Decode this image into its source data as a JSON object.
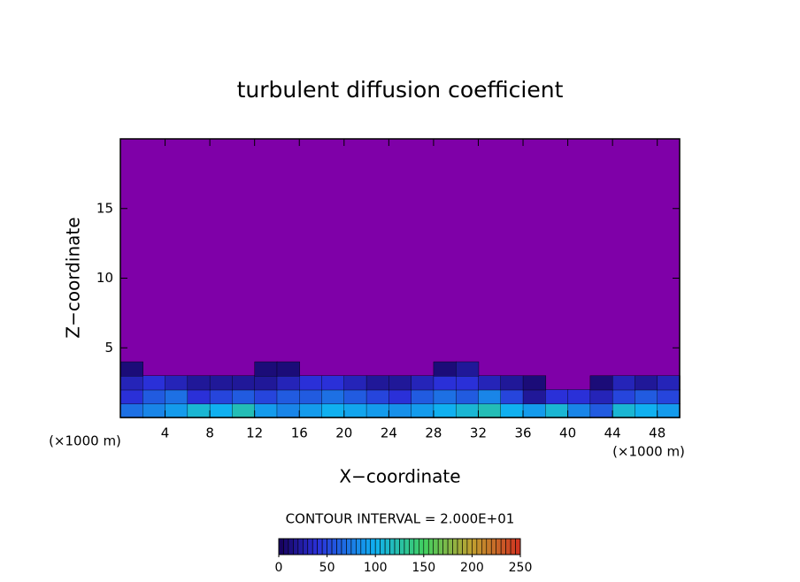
{
  "chart_data": {
    "type": "contour",
    "title": "turbulent diffusion coefficient",
    "x_label": "X−coordinate",
    "y_label": "Z−coordinate",
    "x_unit": "(×1000 m)",
    "contour_interval": "CONTOUR INTERVAL = 2.000E+01",
    "xlim": [
      0,
      50
    ],
    "ylim": [
      0,
      20
    ],
    "xticks": [
      4,
      8,
      12,
      16,
      20,
      24,
      28,
      32,
      36,
      40,
      44,
      48
    ],
    "yticks": [
      5,
      10,
      15
    ],
    "background_color": "#7f00a8",
    "x": [
      1,
      3,
      5,
      7,
      9,
      11,
      13,
      15,
      17,
      19,
      21,
      23,
      25,
      27,
      29,
      31,
      33,
      35,
      37,
      39,
      41,
      43,
      45,
      47,
      49
    ],
    "z": [
      0.5,
      1.5,
      2.5,
      3.5
    ],
    "field": [
      [
        70,
        80,
        90,
        110,
        100,
        120,
        90,
        80,
        90,
        100,
        95,
        90,
        85,
        90,
        100,
        110,
        120,
        100,
        90,
        110,
        80,
        60,
        110,
        100,
        90
      ],
      [
        40,
        60,
        70,
        40,
        50,
        60,
        50,
        60,
        60,
        70,
        60,
        50,
        40,
        60,
        70,
        60,
        80,
        50,
        20,
        40,
        40,
        30,
        50,
        60,
        50
      ],
      [
        30,
        40,
        30,
        20,
        20,
        20,
        20,
        30,
        40,
        40,
        30,
        20,
        20,
        30,
        40,
        40,
        30,
        20,
        10,
        0,
        0,
        10,
        30,
        20,
        30
      ],
      [
        10,
        0,
        0,
        0,
        0,
        0,
        10,
        10,
        0,
        0,
        0,
        0,
        0,
        0,
        10,
        20,
        0,
        0,
        0,
        0,
        0,
        0,
        0,
        0,
        0
      ]
    ],
    "colorbar_lim": [
      0,
      250
    ],
    "colorbar_ticks": [
      0,
      50,
      100,
      150,
      200,
      250
    ],
    "colormap": [
      {
        "value": 0,
        "color": "#160058"
      },
      {
        "value": 40,
        "color": "#2a30d8"
      },
      {
        "value": 100,
        "color": "#10b0f0"
      },
      {
        "value": 150,
        "color": "#40d060"
      },
      {
        "value": 200,
        "color": "#c0a030"
      },
      {
        "value": 250,
        "color": "#d03020"
      }
    ]
  }
}
